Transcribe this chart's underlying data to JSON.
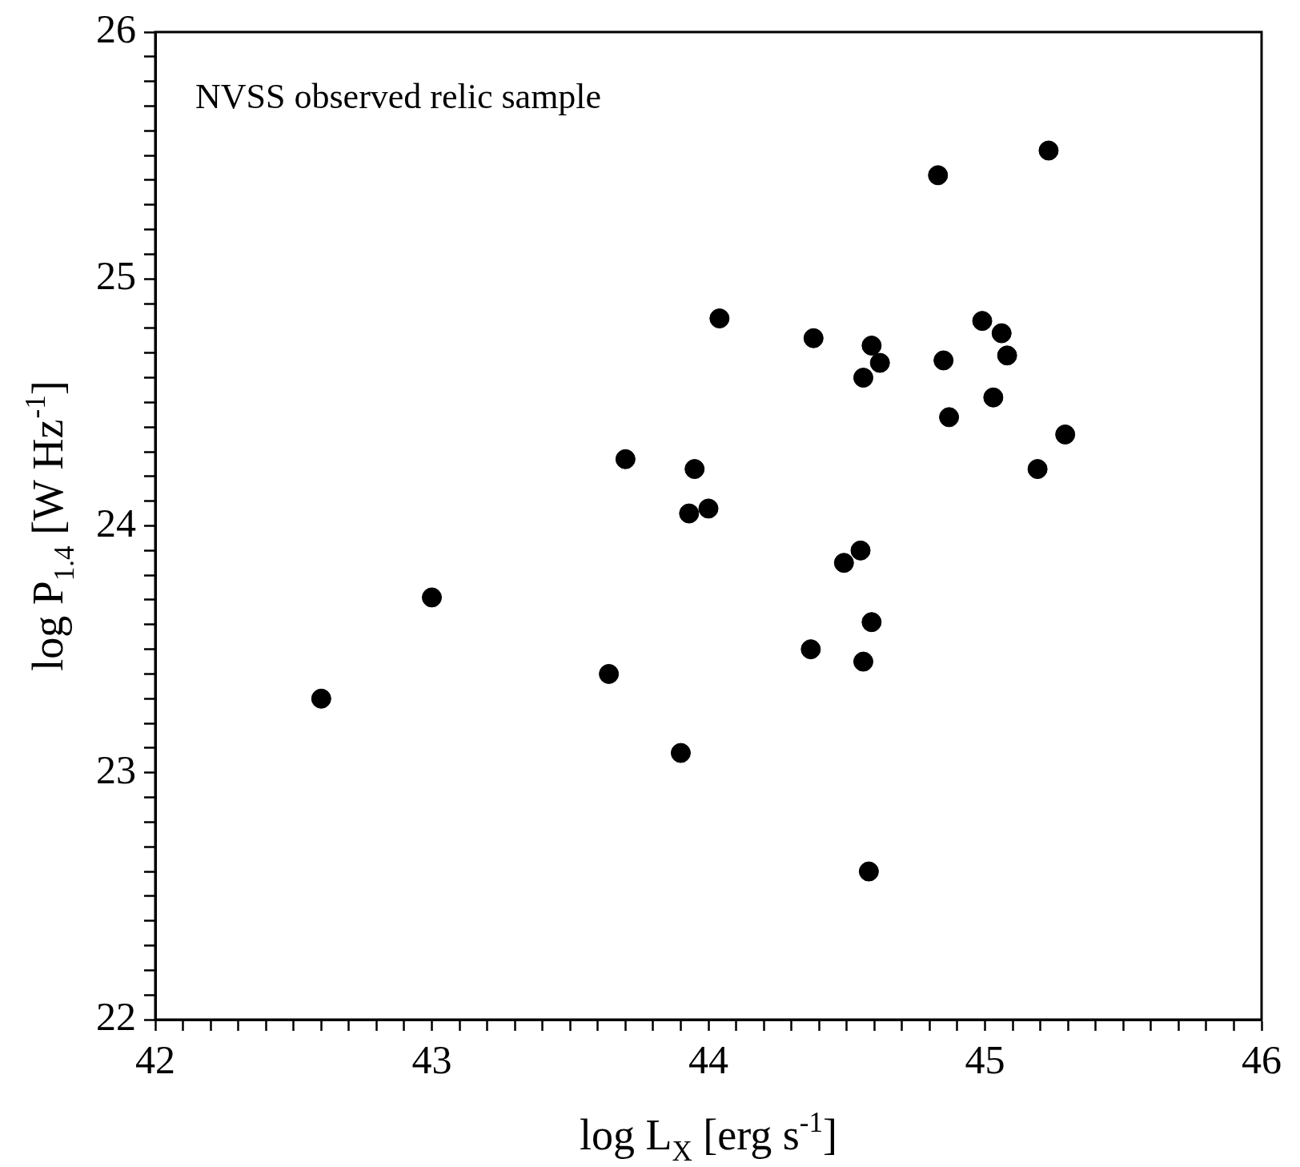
{
  "chart_data": {
    "type": "scatter",
    "xlabel": "log L$_{X}$ [erg s$^{-1}$]",
    "ylabel": "log P$_{1.4}$ [W Hz$^{-1}$]",
    "annotations": [
      "NVSS observed relic sample"
    ],
    "x": [
      42.6,
      43.0,
      43.64,
      43.7,
      43.9,
      43.93,
      44.0,
      43.95,
      44.04,
      44.38,
      44.37,
      44.49,
      44.55,
      44.56,
      44.59,
      44.58,
      44.56,
      44.59,
      44.62,
      44.83,
      44.85,
      44.87,
      44.99,
      45.03,
      45.06,
      45.08,
      45.19,
      45.23,
      45.29
    ],
    "series": [
      {
        "color": "#000000",
        "values": [
          23.3,
          23.71,
          23.4,
          24.27,
          23.08,
          24.05,
          24.07,
          24.23,
          24.84,
          24.76,
          23.5,
          23.85,
          23.9,
          23.45,
          23.61,
          22.6,
          24.6,
          24.73,
          24.66,
          25.42,
          24.67,
          24.44,
          24.83,
          24.52,
          24.78,
          24.69,
          24.23,
          25.52,
          24.37
        ]
      }
    ],
    "marker": "circle",
    "grid": false,
    "legend": false,
    "xlim": [
      42,
      46
    ],
    "ylim": [
      22,
      26
    ],
    "xticks": [
      42,
      {
        "value": 42.1,
        "label": null
      },
      {
        "value": 42.2,
        "label": null
      },
      {
        "value": 42.3,
        "label": null
      },
      {
        "value": 42.4,
        "label": null
      },
      {
        "value": 42.5,
        "label": null
      },
      {
        "value": 42.6,
        "label": null
      },
      {
        "value": 42.7,
        "label": null
      },
      {
        "value": 42.8,
        "label": null
      },
      {
        "value": 42.9,
        "label": null
      },
      43,
      {
        "value": 43.1,
        "label": null
      },
      {
        "value": 43.2,
        "label": null
      },
      {
        "value": 43.3,
        "label": null
      },
      {
        "value": 43.4,
        "label": null
      },
      {
        "value": 43.5,
        "label": null
      },
      {
        "value": 43.6,
        "label": null
      },
      {
        "value": 43.7,
        "label": null
      },
      {
        "value": 43.8,
        "label": null
      },
      {
        "value": 43.9,
        "label": null
      },
      44,
      {
        "value": 44.1,
        "label": null
      },
      {
        "value": 44.2,
        "label": null
      },
      {
        "value": 44.3,
        "label": null
      },
      {
        "value": 44.4,
        "label": null
      },
      {
        "value": 44.5,
        "label": null
      },
      {
        "value": 44.6,
        "label": null
      },
      {
        "value": 44.7,
        "label": null
      },
      {
        "value": 44.8,
        "label": null
      },
      {
        "value": 44.9,
        "label": null
      },
      45,
      {
        "value": 45.1,
        "label": null
      },
      {
        "value": 45.2,
        "label": null
      },
      {
        "value": 45.3,
        "label": null
      },
      {
        "value": 45.4,
        "label": null
      },
      {
        "value": 45.5,
        "label": null
      },
      {
        "value": 45.6,
        "label": null
      },
      {
        "value": 45.7,
        "label": null
      },
      {
        "value": 45.8,
        "label": null
      },
      {
        "value": 45.9,
        "label": null
      },
      46
    ],
    "yticks": [
      22,
      {
        "value": 22.1,
        "label": null
      },
      {
        "value": 22.2,
        "label": null
      },
      {
        "value": 22.3,
        "label": null
      },
      {
        "value": 22.4,
        "label": null
      },
      {
        "value": 22.5,
        "label": null
      },
      {
        "value": 22.6,
        "label": null
      },
      {
        "value": 22.7,
        "label": null
      },
      {
        "value": 22.8,
        "label": null
      },
      {
        "value": 22.9,
        "label": null
      },
      23,
      {
        "value": 23.1,
        "label": null
      },
      {
        "value": 23.2,
        "label": null
      },
      {
        "value": 23.3,
        "label": null
      },
      {
        "value": 23.4,
        "label": null
      },
      {
        "value": 23.5,
        "label": null
      },
      {
        "value": 23.6,
        "label": null
      },
      {
        "value": 23.7,
        "label": null
      },
      {
        "value": 23.8,
        "label": null
      },
      {
        "value": 23.9,
        "label": null
      },
      24,
      {
        "value": 24.1,
        "label": null
      },
      {
        "value": 24.2,
        "label": null
      },
      {
        "value": 24.3,
        "label": null
      },
      {
        "value": 24.4,
        "label": null
      },
      {
        "value": 24.5,
        "label": null
      },
      {
        "value": 24.6,
        "label": null
      },
      {
        "value": 24.7,
        "label": null
      },
      {
        "value": 24.8,
        "label": null
      },
      {
        "value": 24.9,
        "label": null
      },
      25,
      {
        "value": 25.1,
        "label": null
      },
      {
        "value": 25.2,
        "label": null
      },
      {
        "value": 25.3,
        "label": null
      },
      {
        "value": 25.4,
        "label": null
      },
      {
        "value": 25.5,
        "label": null
      },
      {
        "value": 25.6,
        "label": null
      },
      {
        "value": 25.7,
        "label": null
      },
      {
        "value": 25.8,
        "label": null
      },
      {
        "value": 25.9,
        "label": null
      },
      26
    ]
  }
}
